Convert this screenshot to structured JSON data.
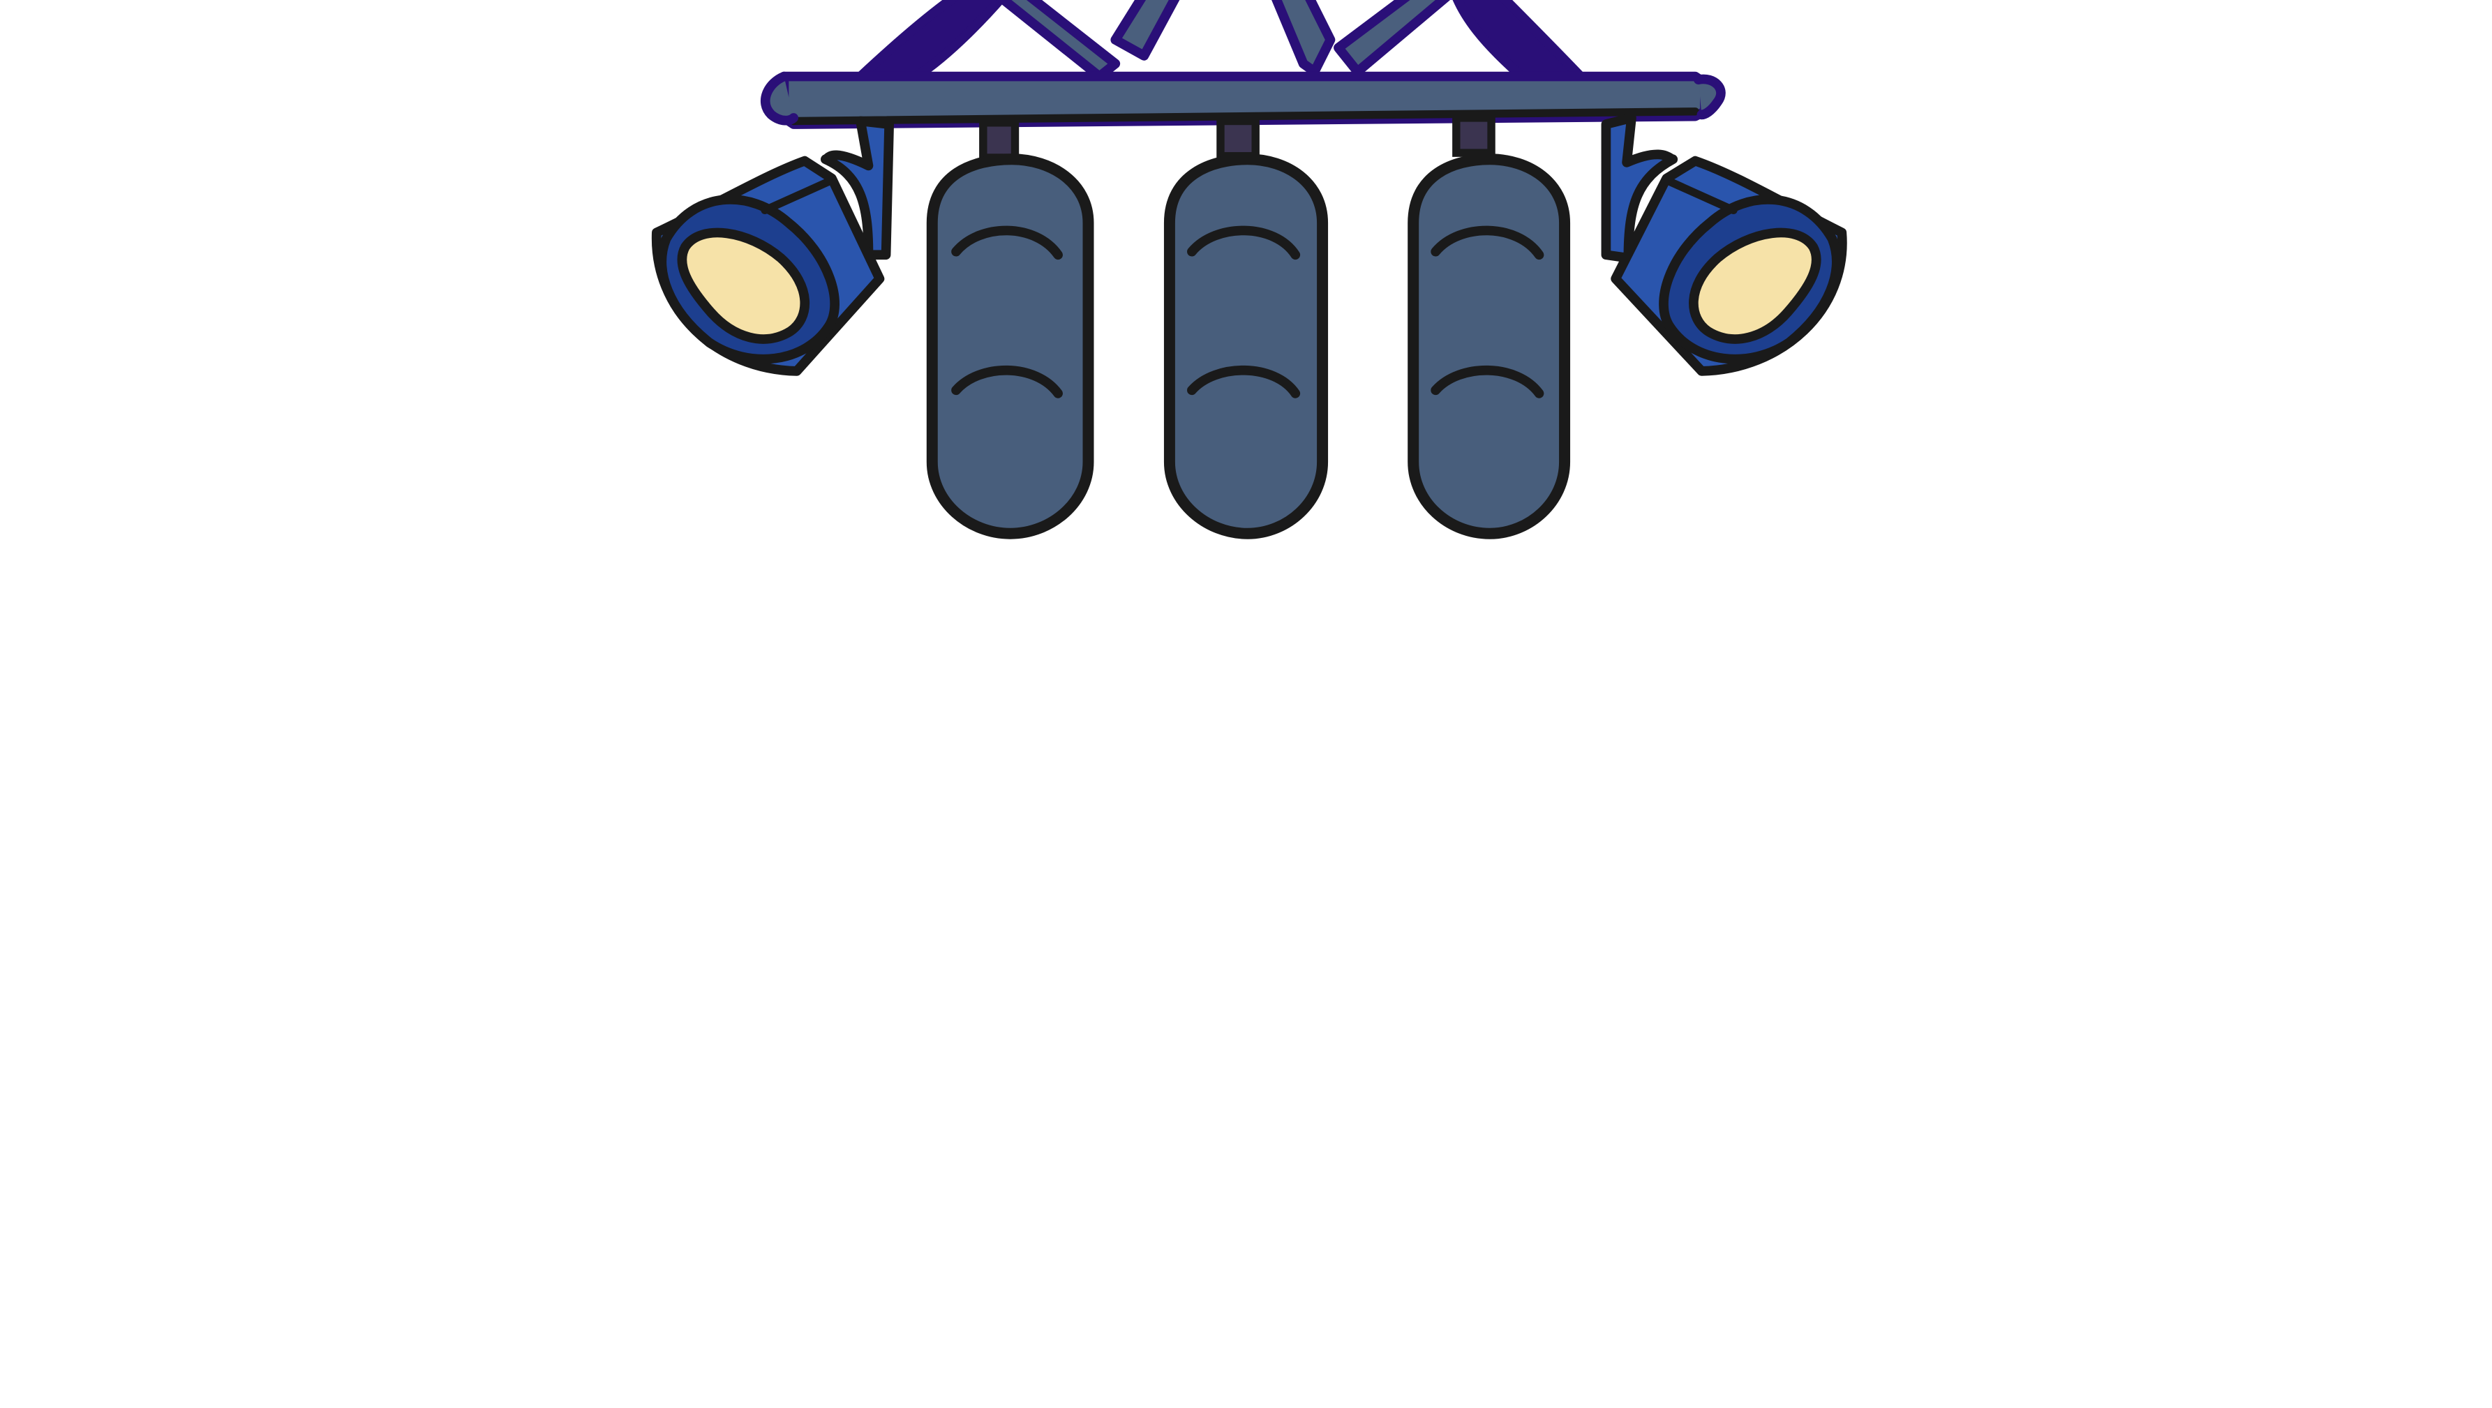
{
  "scene": {
    "subject": "stage-lighting-rig",
    "icon_name": "stage-lights-icon",
    "colors": {
      "background": "#ffffff",
      "outline": "#1a1a1a",
      "truss_outline": "#2a0f78",
      "truss_fill": "#4a5f7d",
      "hanger": "#3b3450",
      "panel_fill": "#485e7c",
      "spotlight_body": "#2a55ad",
      "spotlight_rim": "#1d3f8f",
      "lens": "#f6e2a8"
    },
    "counts": {
      "vertical_lights": 3,
      "spotlights": 2
    }
  }
}
